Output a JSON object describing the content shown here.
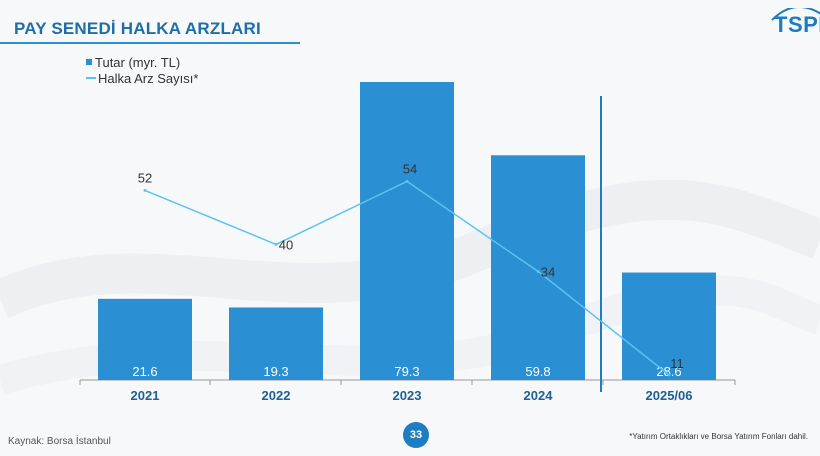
{
  "slide": {
    "title": "PAY SENEDİ HALKA ARZLARI",
    "logo": "TSPB",
    "source": "Kaynak: Borsa İstanbul",
    "page_number": "33",
    "footnote": "*Yatırım Ortaklıkları ve Borsa Yatırım Fonları dahil.",
    "colors": {
      "accent": "#1e6fa8",
      "bar": "#2a8fd3",
      "line": "#5bc3f0"
    }
  },
  "chart_data": {
    "type": "bar",
    "categories": [
      "2021",
      "2022",
      "2023",
      "2024",
      "2025/06"
    ],
    "series": [
      {
        "name": "Tutar (myr. TL)",
        "type": "bar",
        "values": [
          21.6,
          19.3,
          79.3,
          59.8,
          28.6
        ],
        "labels": [
          "21.6",
          "19.3",
          "79.3",
          "59.8",
          "28.6"
        ],
        "color": "#2a8fd3"
      },
      {
        "name": "Halka Arz Sayısı*",
        "type": "line",
        "values": [
          52,
          40,
          54,
          34,
          11
        ],
        "labels": [
          "52",
          "40",
          "54",
          "34",
          "11"
        ],
        "color": "#5bc3f0"
      }
    ],
    "legend": "top-left",
    "grid": false
  }
}
